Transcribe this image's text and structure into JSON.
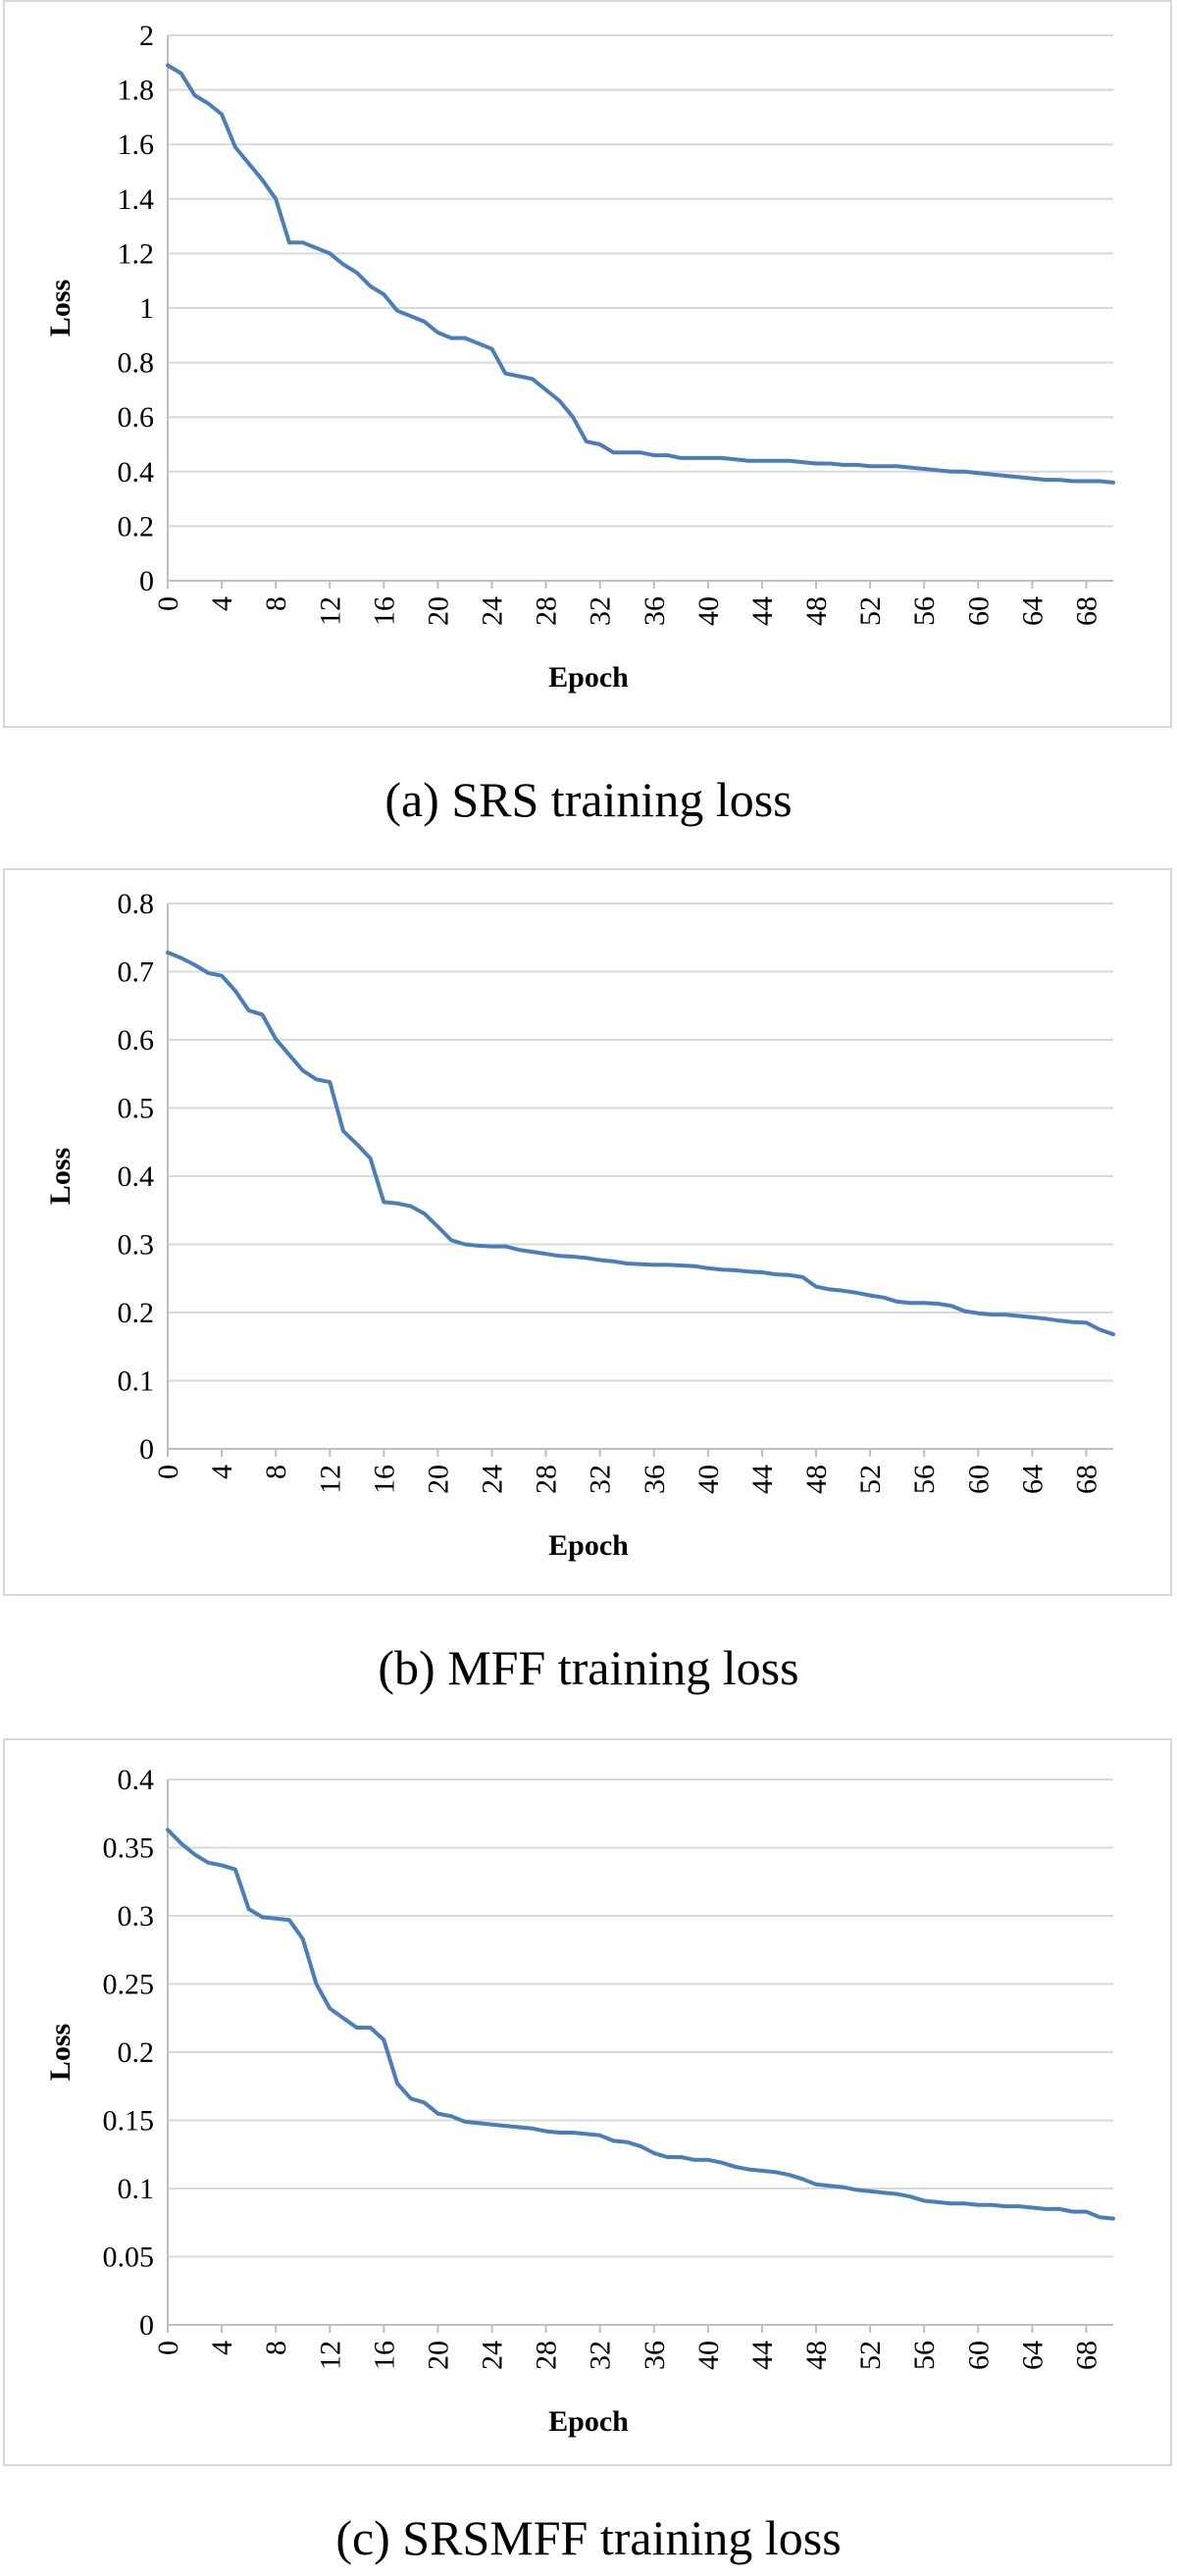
{
  "colors": {
    "series": "#4a7ebb",
    "grid": "#d9d9d9",
    "axis": "#bfbfbf"
  },
  "chart_data": [
    {
      "type": "line",
      "caption": "(a) SRS training loss",
      "xlabel": "Epoch",
      "ylabel": "Loss",
      "ylim": [
        0,
        2
      ],
      "ytick_labels": [
        "0",
        "0.2",
        "0.4",
        "0.6",
        "0.8",
        "1",
        "1.2",
        "1.4",
        "1.6",
        "1.8",
        "2"
      ],
      "xlim": [
        0,
        70
      ],
      "xtick_labels": [
        "0",
        "4",
        "8",
        "12",
        "16",
        "20",
        "24",
        "28",
        "32",
        "36",
        "40",
        "44",
        "48",
        "52",
        "56",
        "60",
        "64",
        "68"
      ],
      "grid": true,
      "x": [
        0,
        1,
        2,
        3,
        4,
        5,
        6,
        7,
        8,
        9,
        10,
        11,
        12,
        13,
        14,
        15,
        16,
        17,
        18,
        19,
        20,
        21,
        22,
        23,
        24,
        25,
        26,
        27,
        28,
        29,
        30,
        31,
        32,
        33,
        34,
        35,
        36,
        37,
        38,
        39,
        40,
        41,
        42,
        43,
        44,
        45,
        46,
        47,
        48,
        49,
        50,
        51,
        52,
        53,
        54,
        55,
        56,
        57,
        58,
        59,
        60,
        61,
        62,
        63,
        64,
        65,
        66,
        67,
        68,
        69,
        70
      ],
      "y": [
        1.89,
        1.86,
        1.78,
        1.75,
        1.71,
        1.59,
        1.53,
        1.47,
        1.4,
        1.24,
        1.24,
        1.22,
        1.2,
        1.16,
        1.13,
        1.08,
        1.05,
        0.99,
        0.97,
        0.95,
        0.91,
        0.89,
        0.89,
        0.87,
        0.85,
        0.76,
        0.75,
        0.74,
        0.7,
        0.66,
        0.6,
        0.51,
        0.5,
        0.47,
        0.47,
        0.47,
        0.46,
        0.46,
        0.45,
        0.45,
        0.45,
        0.45,
        0.445,
        0.44,
        0.44,
        0.44,
        0.44,
        0.435,
        0.43,
        0.43,
        0.425,
        0.425,
        0.42,
        0.42,
        0.42,
        0.415,
        0.41,
        0.405,
        0.4,
        0.4,
        0.395,
        0.39,
        0.385,
        0.38,
        0.375,
        0.37,
        0.37,
        0.365,
        0.365,
        0.365,
        0.36
      ]
    },
    {
      "type": "line",
      "caption": "(b) MFF training loss",
      "xlabel": "Epoch",
      "ylabel": "Loss",
      "ylim": [
        0,
        0.8
      ],
      "ytick_labels": [
        "0",
        "0.1",
        "0.2",
        "0.3",
        "0.4",
        "0.5",
        "0.6",
        "0.7",
        "0.8"
      ],
      "xlim": [
        0,
        70
      ],
      "xtick_labels": [
        "0",
        "4",
        "8",
        "12",
        "16",
        "20",
        "24",
        "28",
        "32",
        "36",
        "40",
        "44",
        "48",
        "52",
        "56",
        "60",
        "64",
        "68"
      ],
      "grid": true,
      "x": [
        0,
        1,
        2,
        3,
        4,
        5,
        6,
        7,
        8,
        9,
        10,
        11,
        12,
        13,
        14,
        15,
        16,
        17,
        18,
        19,
        20,
        21,
        22,
        23,
        24,
        25,
        26,
        27,
        28,
        29,
        30,
        31,
        32,
        33,
        34,
        35,
        36,
        37,
        38,
        39,
        40,
        41,
        42,
        43,
        44,
        45,
        46,
        47,
        48,
        49,
        50,
        51,
        52,
        53,
        54,
        55,
        56,
        57,
        58,
        59,
        60,
        61,
        62,
        63,
        64,
        65,
        66,
        67,
        68,
        69,
        70
      ],
      "y": [
        0.728,
        0.72,
        0.71,
        0.698,
        0.694,
        0.672,
        0.643,
        0.637,
        0.601,
        0.578,
        0.555,
        0.542,
        0.538,
        0.466,
        0.447,
        0.426,
        0.362,
        0.36,
        0.356,
        0.345,
        0.326,
        0.306,
        0.3,
        0.298,
        0.297,
        0.297,
        0.292,
        0.289,
        0.286,
        0.283,
        0.282,
        0.28,
        0.277,
        0.275,
        0.272,
        0.271,
        0.27,
        0.27,
        0.269,
        0.268,
        0.265,
        0.263,
        0.262,
        0.26,
        0.259,
        0.256,
        0.255,
        0.252,
        0.238,
        0.234,
        0.232,
        0.229,
        0.225,
        0.222,
        0.216,
        0.214,
        0.214,
        0.213,
        0.21,
        0.202,
        0.199,
        0.197,
        0.197,
        0.195,
        0.193,
        0.191,
        0.188,
        0.186,
        0.185,
        0.175,
        0.168
      ]
    },
    {
      "type": "line",
      "caption": "(c) SRSMFF training loss",
      "xlabel": "Epoch",
      "ylabel": "Loss",
      "ylim": [
        0,
        0.4
      ],
      "ytick_labels": [
        "0",
        "0.05",
        "0.1",
        "0.15",
        "0.2",
        "0.25",
        "0.3",
        "0.35",
        "0.4"
      ],
      "xlim": [
        0,
        70
      ],
      "xtick_labels": [
        "0",
        "4",
        "8",
        "12",
        "16",
        "20",
        "24",
        "28",
        "32",
        "36",
        "40",
        "44",
        "48",
        "52",
        "56",
        "60",
        "64",
        "68"
      ],
      "grid": true,
      "x": [
        0,
        1,
        2,
        3,
        4,
        5,
        6,
        7,
        8,
        9,
        10,
        11,
        12,
        13,
        14,
        15,
        16,
        17,
        18,
        19,
        20,
        21,
        22,
        23,
        24,
        25,
        26,
        27,
        28,
        29,
        30,
        31,
        32,
        33,
        34,
        35,
        36,
        37,
        38,
        39,
        40,
        41,
        42,
        43,
        44,
        45,
        46,
        47,
        48,
        49,
        50,
        51,
        52,
        53,
        54,
        55,
        56,
        57,
        58,
        59,
        60,
        61,
        62,
        63,
        64,
        65,
        66,
        67,
        68,
        69,
        70
      ],
      "y": [
        0.363,
        0.353,
        0.345,
        0.339,
        0.337,
        0.334,
        0.305,
        0.299,
        0.298,
        0.297,
        0.283,
        0.25,
        0.232,
        0.225,
        0.218,
        0.218,
        0.209,
        0.177,
        0.166,
        0.163,
        0.155,
        0.153,
        0.149,
        0.148,
        0.147,
        0.146,
        0.145,
        0.144,
        0.142,
        0.141,
        0.141,
        0.14,
        0.139,
        0.135,
        0.134,
        0.131,
        0.126,
        0.123,
        0.123,
        0.121,
        0.121,
        0.119,
        0.116,
        0.114,
        0.113,
        0.112,
        0.11,
        0.107,
        0.103,
        0.102,
        0.101,
        0.099,
        0.098,
        0.097,
        0.096,
        0.094,
        0.091,
        0.09,
        0.089,
        0.089,
        0.088,
        0.088,
        0.087,
        0.087,
        0.086,
        0.085,
        0.085,
        0.083,
        0.083,
        0.079,
        0.078
      ]
    }
  ]
}
